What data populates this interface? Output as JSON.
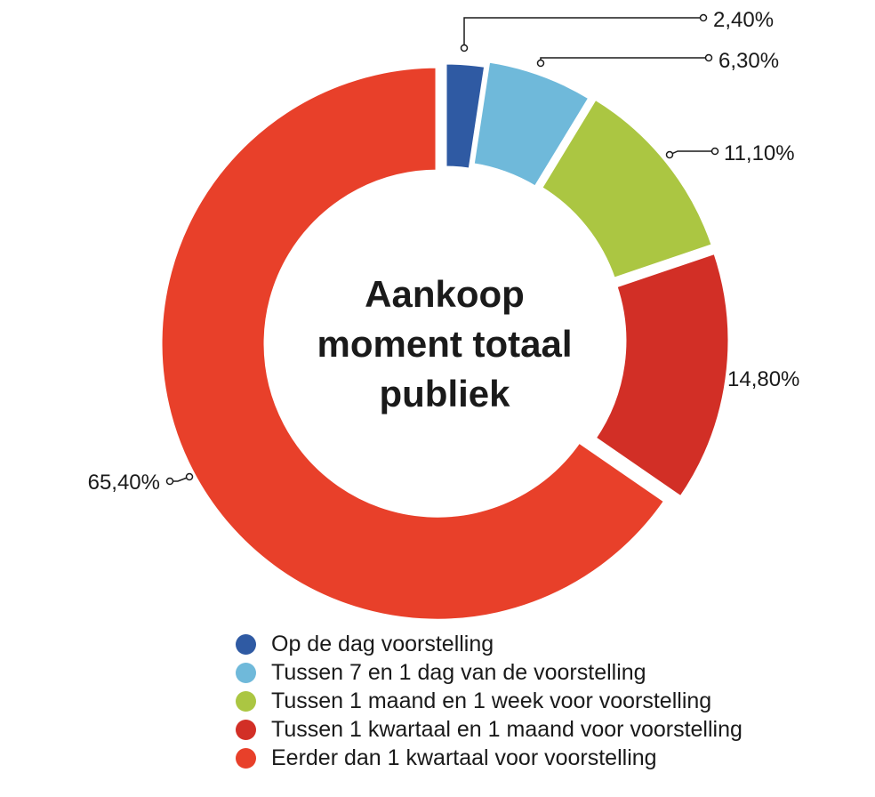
{
  "chart_data": {
    "type": "pie",
    "title_lines": [
      "Aankoop",
      "moment totaal",
      "publiek"
    ],
    "categories": [
      "Op de dag voorstelling",
      "Tussen 7 en 1 dag van de voorstelling",
      "Tussen 1 maand en 1 week voor voorstelling",
      "Tussen 1 kwartaal en 1 maand voor voorstelling",
      "Eerder dan 1 kwartaal voor voorstelling"
    ],
    "values": [
      2.4,
      6.3,
      11.1,
      14.8,
      65.4
    ],
    "value_labels": [
      "2,40%",
      "6,30%",
      "11,10%",
      "14,80%",
      "65,40%"
    ],
    "colors": [
      "#2f5aa3",
      "#6fb9da",
      "#abc642",
      "#d22f26",
      "#e8402a"
    ],
    "legend_position": "bottom"
  }
}
